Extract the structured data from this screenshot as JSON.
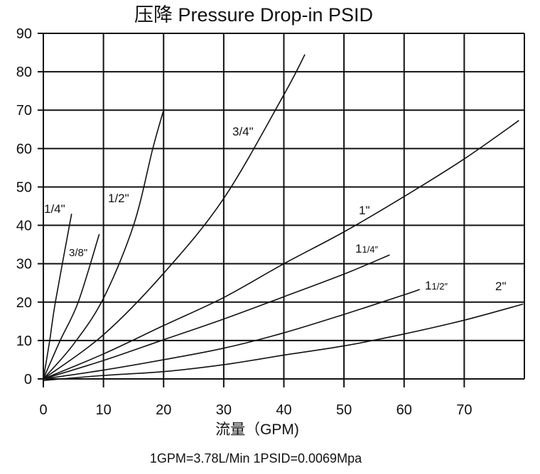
{
  "chart_data": {
    "type": "line",
    "title": "压降 Pressure Drop-in PSID",
    "xlabel": "流量（GPM)",
    "ylabel": "",
    "footnote": "1GPM=3.78L/Min  1PSID=0.0069Mpa",
    "xlim": [
      0,
      80
    ],
    "ylim": [
      0,
      90
    ],
    "grid": true,
    "xticks": [
      "0",
      "10",
      "20",
      "30",
      "40",
      "50",
      "60",
      "70"
    ],
    "yticks": [
      "0",
      "10",
      "20",
      "30",
      "40",
      "50",
      "60",
      "70",
      "80",
      "90"
    ],
    "series": [
      {
        "name": "1/4\"",
        "points": [
          [
            0,
            0
          ],
          [
            1.06,
            10
          ],
          [
            2.0,
            20
          ],
          [
            4.7,
            43
          ]
        ]
      },
      {
        "name": "3/8\"",
        "points": [
          [
            0,
            0
          ],
          [
            2.8,
            10
          ],
          [
            5.8,
            20
          ],
          [
            9.3,
            37.7
          ]
        ]
      },
      {
        "name": "1/2\"",
        "points": [
          [
            0,
            0
          ],
          [
            5,
            9
          ],
          [
            10,
            21
          ],
          [
            15,
            40
          ],
          [
            18.2,
            60
          ],
          [
            20,
            70
          ]
        ]
      },
      {
        "name": "3/4\"",
        "points": [
          [
            0,
            0
          ],
          [
            10,
            11.5
          ],
          [
            20,
            27.5
          ],
          [
            30,
            47
          ],
          [
            40,
            74
          ],
          [
            43.5,
            84.5
          ]
        ]
      },
      {
        "name": "1\"",
        "points": [
          [
            0,
            0
          ],
          [
            10,
            6.5
          ],
          [
            20,
            13.9
          ],
          [
            30,
            21.2
          ],
          [
            40,
            30
          ],
          [
            50,
            38.3
          ],
          [
            60,
            47.5
          ],
          [
            70,
            57.3
          ],
          [
            79.1,
            67.3
          ]
        ]
      },
      {
        "name": "1 1/4\"",
        "points": [
          [
            0,
            0
          ],
          [
            10,
            4.8
          ],
          [
            20,
            10.2
          ],
          [
            30,
            15.6
          ],
          [
            40,
            21.4
          ],
          [
            50,
            27.3
          ],
          [
            57.6,
            32.3
          ]
        ]
      },
      {
        "name": "1 1/2\"",
        "points": [
          [
            0,
            0
          ],
          [
            10,
            2.3
          ],
          [
            20,
            5
          ],
          [
            30,
            8
          ],
          [
            40,
            12
          ],
          [
            50,
            16.8
          ],
          [
            60,
            21.9
          ],
          [
            62.6,
            23.3
          ]
        ]
      },
      {
        "name": "2\"",
        "points": [
          [
            0,
            -0.4
          ],
          [
            10,
            0.9
          ],
          [
            20,
            1.9
          ],
          [
            30,
            3.7
          ],
          [
            40,
            6.2
          ],
          [
            50,
            8.6
          ],
          [
            60,
            11.7
          ],
          [
            70,
            15.3
          ],
          [
            79.8,
            19.5
          ]
        ]
      }
    ],
    "series_labels": [
      {
        "main": "1/4\"",
        "sub": ""
      },
      {
        "main": "3/8\"",
        "sub": ""
      },
      {
        "main": "1/2\"",
        "sub": ""
      },
      {
        "main": "3/4\"",
        "sub": ""
      },
      {
        "main": "1\"",
        "sub": ""
      },
      {
        "main": "1",
        "sub": "1/4″"
      },
      {
        "main": "1",
        "sub": "1/2″"
      },
      {
        "main": "2\"",
        "sub": ""
      }
    ]
  }
}
